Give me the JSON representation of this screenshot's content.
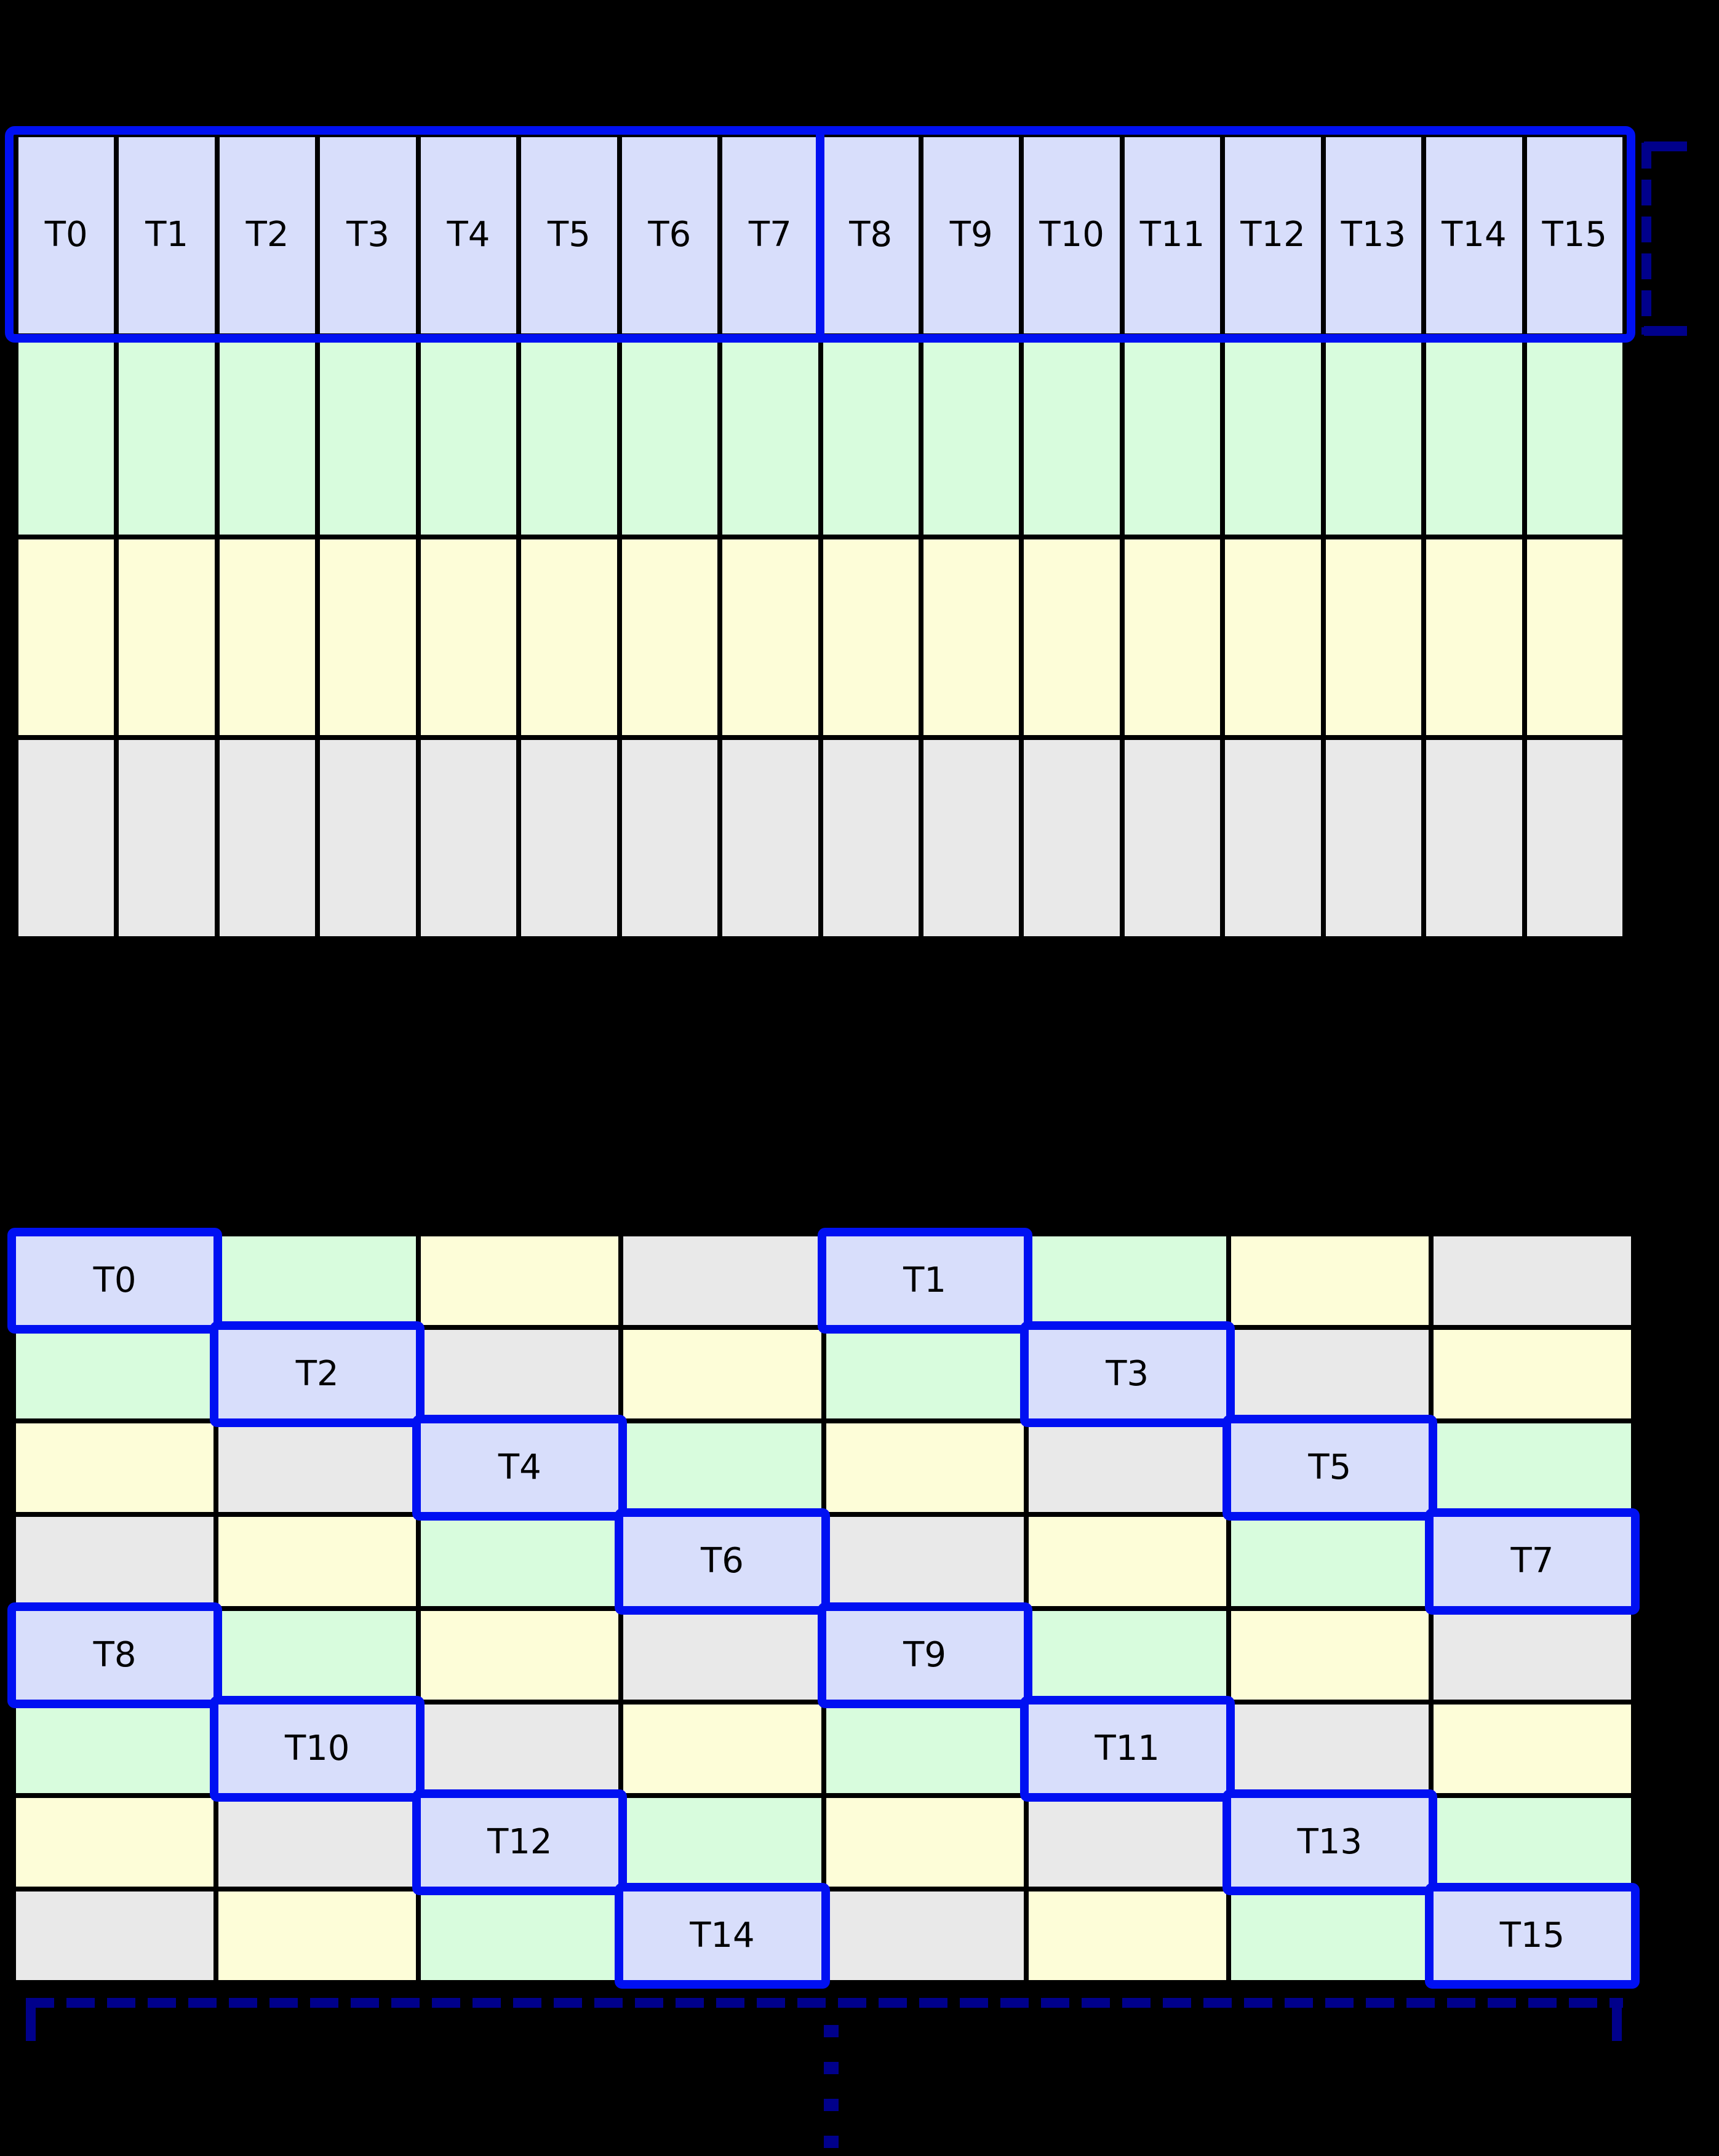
{
  "colors": {
    "fills": {
      "blue": "#d8defb",
      "green": "#d8fcdd",
      "yellow": "#fdfdd8",
      "gray": "#e9e9e9"
    },
    "highlight_border": "#0010f2",
    "bracket": "#00008b",
    "grid_line": "#000000",
    "background": "#000000",
    "label_text": "#000000"
  },
  "top_grid": {
    "cols": 16,
    "rows": 4,
    "thread_labels": [
      "T0",
      "T1",
      "T2",
      "T3",
      "T4",
      "T5",
      "T6",
      "T7",
      "T8",
      "T9",
      "T10",
      "T11",
      "T12",
      "T13",
      "T14",
      "T15"
    ],
    "row_fills": [
      "blue",
      "green",
      "yellow",
      "gray"
    ],
    "group_split_after_col": 8
  },
  "bottom_grid": {
    "cols": 8,
    "rows": [
      [
        {
          "fill": "blue",
          "label": "T0"
        },
        {
          "fill": "green"
        },
        {
          "fill": "yellow"
        },
        {
          "fill": "gray"
        },
        {
          "fill": "blue",
          "label": "T1"
        },
        {
          "fill": "green"
        },
        {
          "fill": "yellow"
        },
        {
          "fill": "gray"
        }
      ],
      [
        {
          "fill": "green"
        },
        {
          "fill": "blue",
          "label": "T2"
        },
        {
          "fill": "gray"
        },
        {
          "fill": "yellow"
        },
        {
          "fill": "green"
        },
        {
          "fill": "blue",
          "label": "T3"
        },
        {
          "fill": "gray"
        },
        {
          "fill": "yellow"
        }
      ],
      [
        {
          "fill": "yellow"
        },
        {
          "fill": "gray"
        },
        {
          "fill": "blue",
          "label": "T4"
        },
        {
          "fill": "green"
        },
        {
          "fill": "yellow"
        },
        {
          "fill": "gray"
        },
        {
          "fill": "blue",
          "label": "T5"
        },
        {
          "fill": "green"
        }
      ],
      [
        {
          "fill": "gray"
        },
        {
          "fill": "yellow"
        },
        {
          "fill": "green"
        },
        {
          "fill": "blue",
          "label": "T6"
        },
        {
          "fill": "gray"
        },
        {
          "fill": "yellow"
        },
        {
          "fill": "green"
        },
        {
          "fill": "blue",
          "label": "T7"
        }
      ],
      [
        {
          "fill": "blue",
          "label": "T8"
        },
        {
          "fill": "green"
        },
        {
          "fill": "yellow"
        },
        {
          "fill": "gray"
        },
        {
          "fill": "blue",
          "label": "T9"
        },
        {
          "fill": "green"
        },
        {
          "fill": "yellow"
        },
        {
          "fill": "gray"
        }
      ],
      [
        {
          "fill": "green"
        },
        {
          "fill": "blue",
          "label": "T10"
        },
        {
          "fill": "gray"
        },
        {
          "fill": "yellow"
        },
        {
          "fill": "green"
        },
        {
          "fill": "blue",
          "label": "T11"
        },
        {
          "fill": "gray"
        },
        {
          "fill": "yellow"
        }
      ],
      [
        {
          "fill": "yellow"
        },
        {
          "fill": "gray"
        },
        {
          "fill": "blue",
          "label": "T12"
        },
        {
          "fill": "green"
        },
        {
          "fill": "yellow"
        },
        {
          "fill": "gray"
        },
        {
          "fill": "blue",
          "label": "T13"
        },
        {
          "fill": "green"
        }
      ],
      [
        {
          "fill": "gray"
        },
        {
          "fill": "yellow"
        },
        {
          "fill": "green"
        },
        {
          "fill": "blue",
          "label": "T14"
        },
        {
          "fill": "gray"
        },
        {
          "fill": "yellow"
        },
        {
          "fill": "green"
        },
        {
          "fill": "blue",
          "label": "T15"
        }
      ]
    ]
  },
  "annotations": {
    "row_bracket_icon": "dashed-right-bracket",
    "width_bracket_icon": "dashed-underline-bracket",
    "ellipsis_icon": "vertical-ellipsis"
  }
}
